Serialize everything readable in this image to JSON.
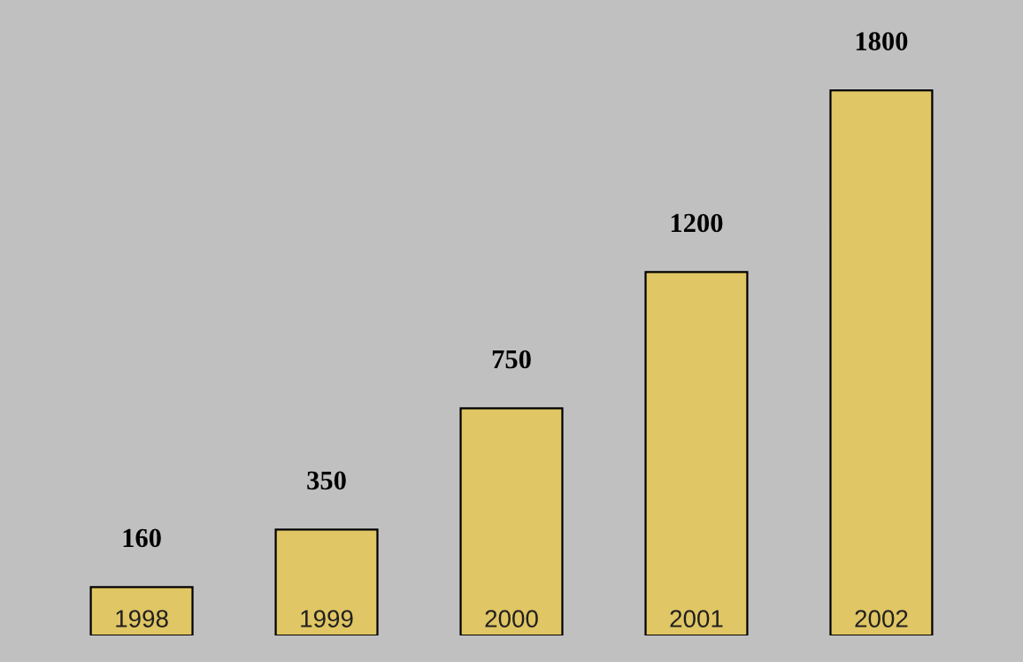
{
  "chart_data": {
    "type": "bar",
    "categories": [
      "1998",
      "1999",
      "2000",
      "2001",
      "2002"
    ],
    "values": [
      160,
      350,
      750,
      1200,
      1800
    ],
    "color": "#e0c664",
    "data_labels": true
  }
}
